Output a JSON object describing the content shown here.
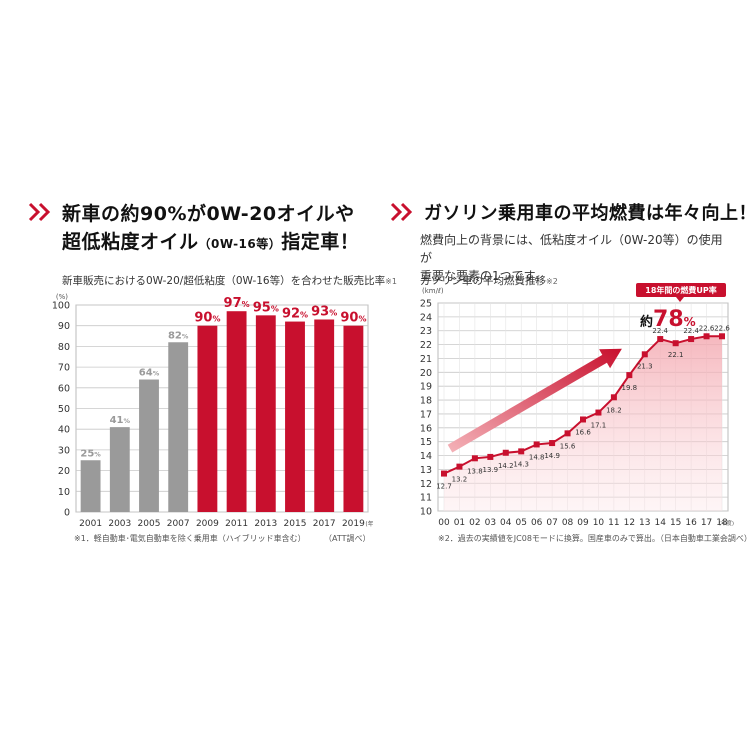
{
  "left_panel": {
    "heading_line1": "新車の約90%が0W-20オイルや",
    "heading_line2_main": "超低粘度オイル",
    "heading_line2_small": "（0W-16等）",
    "heading_line2_end": "指定車！",
    "subtitle": "新車販売における0W-20/超低粘度（0W-16等）を合わせた販売比率",
    "subtitle_mark": "※1",
    "footnote_left": "※1．軽自動車･電気自動車を除く乗用車（ハイブリッド車含む）",
    "footnote_right": "（ATT調べ）"
  },
  "right_panel": {
    "heading": "ガソリン乗用車の平均燃費は年々向上！",
    "desc_line1": "燃費向上の背景には、低粘度オイル（0W-20等）の使用が",
    "desc_line2": "重要な要素の1つです。",
    "subtitle": "ガソリン車の平均燃費推移",
    "subtitle_mark": "※2",
    "badge": "18年間の燃費UP率",
    "callout_prefix": "約",
    "callout_value": "78",
    "callout_unit": "%",
    "footnote": "※2．過去の実績値をJC08モードに換算。国産車のみで算出。（日本自動車工業会調べ）"
  },
  "colors": {
    "accent": "#c8102e",
    "gray_bar": "#9a9a9a",
    "grid": "#c8c8c8"
  },
  "chart_data": [
    {
      "type": "bar",
      "title": "新車販売における0W-20/超低粘度（0W-16等）を合わせた販売比率",
      "categories": [
        "2001",
        "2003",
        "2005",
        "2007",
        "2009",
        "2011",
        "2013",
        "2015",
        "2017",
        "2019"
      ],
      "values": [
        25,
        41,
        64,
        82,
        90,
        97,
        95,
        92,
        93,
        90
      ],
      "value_suffix": "%",
      "highlight_from_index": 4,
      "yunit": "(%)",
      "xunit": "(年)",
      "ylim": [
        0,
        100
      ],
      "yticks": [
        0,
        10,
        20,
        30,
        40,
        50,
        60,
        70,
        80,
        90,
        100
      ],
      "grid": true
    },
    {
      "type": "line",
      "title": "ガソリン車の平均燃費推移",
      "x": [
        "00",
        "01",
        "02",
        "03",
        "04",
        "05",
        "06",
        "07",
        "08",
        "09",
        "10",
        "11",
        "12",
        "13",
        "14",
        "15",
        "16",
        "17",
        "18"
      ],
      "values": [
        12.7,
        13.2,
        13.8,
        13.9,
        14.2,
        14.3,
        14.8,
        14.9,
        15.6,
        16.6,
        17.1,
        18.2,
        19.8,
        21.3,
        22.4,
        22.1,
        22.4,
        22.6,
        22.6
      ],
      "labels": [
        "12.7",
        "13.2",
        "13.8",
        "13.9",
        "14.2",
        "14.3",
        "14.8",
        "14.9",
        "15.6",
        "16.6",
        "17.1",
        "18.2",
        "19.8",
        "21.3",
        "22.4",
        "22.1",
        "22.4",
        "22.6",
        "22.6"
      ],
      "yunit": "(km/ℓ)",
      "xunit": "(年度)",
      "ylim": [
        10,
        25
      ],
      "yticks": [
        10,
        11,
        12,
        13,
        14,
        15,
        16,
        17,
        18,
        19,
        20,
        21,
        22,
        23,
        24,
        25
      ],
      "grid": true,
      "area_fill": true
    }
  ]
}
